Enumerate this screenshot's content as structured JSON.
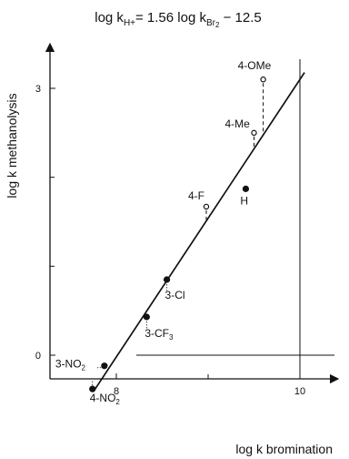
{
  "chart_data": {
    "type": "scatter",
    "title_parts": {
      "lhs_log": "log k",
      "lhs_sub": "H+",
      "equals": "= 1.56 log k",
      "rhs_sub": "Br",
      "rhs_sub2": "2",
      "tail": " − 12.5"
    },
    "xlabel": "log k bromination",
    "ylabel": "log k methanolysis",
    "xlim": [
      7.2,
      10.8
    ],
    "ylim": [
      -0.55,
      3.5
    ],
    "xticks": [
      {
        "value": 8,
        "label": "8"
      },
      {
        "value": 10,
        "label": "10"
      }
    ],
    "yticks": [
      {
        "value": 0,
        "label": "0"
      },
      {
        "value": 3,
        "label": "3"
      }
    ],
    "minor_yticks": [
      1,
      2
    ],
    "minor_xticks": [
      9
    ],
    "reference_lines": {
      "x": 10,
      "y": 0
    },
    "fit_line": {
      "slope": 1.56,
      "intercept": -12.5,
      "x_range": [
        7.75,
        10.05
      ]
    },
    "filled_points": [
      {
        "name": "H",
        "text": "H",
        "x": 9.41,
        "y": 1.87
      },
      {
        "name": "3-Cl",
        "text": "3-Cl",
        "x": 8.55,
        "y": 0.85
      },
      {
        "name": "3-CF3",
        "text": "3-CF",
        "sub": "3",
        "x": 8.33,
        "y": 0.43
      },
      {
        "name": "3-NO2",
        "text": "3-NO",
        "sub": "2",
        "x": 7.87,
        "y": -0.12
      },
      {
        "name": "4-NO2",
        "text": "4-NO",
        "sub": "2",
        "x": 7.74,
        "y": -0.38
      }
    ],
    "open_points": [
      {
        "name": "4-OMe",
        "text": "4-OMe",
        "x": 9.6,
        "y": 3.1
      },
      {
        "name": "4-Me",
        "text": "4-Me",
        "x": 9.5,
        "y": 2.5
      },
      {
        "name": "4-F",
        "text": "4-F",
        "x": 8.98,
        "y": 1.67
      }
    ]
  }
}
